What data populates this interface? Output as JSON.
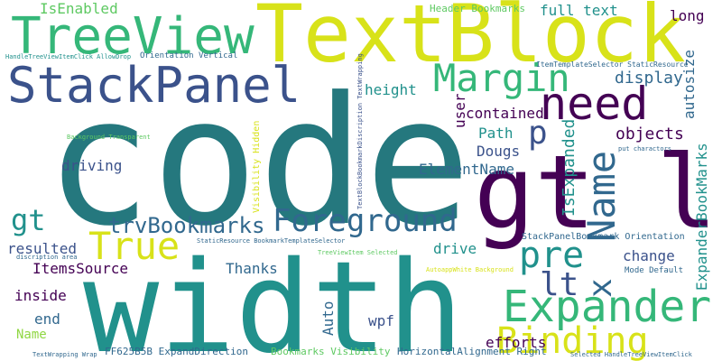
{
  "palette": {
    "background": "#ffffff",
    "dark_purple": "#440154",
    "indigo": "#3b528b",
    "blue": "#31688e",
    "teal": "#21918c",
    "teal_dark": "#25787e",
    "green": "#35b779",
    "light_green": "#5ec962",
    "lime": "#90d743",
    "yellow": "#d8e219",
    "bright_yellow": "#fde725"
  },
  "words": {
    "code": "code",
    "width": "width",
    "textblock": "TextBlock",
    "treeview": "TreeView",
    "stackpanel": "StackPanel",
    "gt_lt": "gt lt",
    "need": "need",
    "margin": "Margin",
    "foreground": "Foreground",
    "expander": "Expander",
    "binding": "Binding",
    "true": "True",
    "name_large": "Name",
    "x": "x",
    "pre": "pre",
    "lt": "lt",
    "p": "p",
    "gt": "gt",
    "trvbookmarks": "trvBookmarks",
    "isenabled": "IsEnabled",
    "header_bookmarks": "Header Bookmarks",
    "full_text": "full text",
    "long": "long",
    "display": "display",
    "autosize": "autosize",
    "objects": "objects",
    "height": "height",
    "contained": "contained",
    "user": "user",
    "isexpanded": "IsExpanded",
    "path": "Path",
    "dougs": "Dougs",
    "driving": "driving",
    "elementname": "ElementName",
    "expanderbookmarks": "ExpanderBookMarks",
    "resulted": "resulted",
    "itemssource": "ItemsSource",
    "drive": "drive",
    "change": "change",
    "thanks": "Thanks",
    "inside": "inside",
    "end": "end",
    "name_small": "Name",
    "auto": "Auto",
    "wpf": "wpf",
    "efforts": "efforts",
    "stackpanelbookmark_orientation": "StackPanelBookmark Orientation",
    "mode_default": "Mode Default",
    "ff625b5b": "FF625B5B ExpandDirection",
    "bookmarks_visibility": "Bookmarks Visibility",
    "horizontalalignment_right": "HorizontalAlignment Right",
    "handle_allowdrop": "HandleTreeViewItemClick AllowDrop",
    "orientation_vertical": "Orientation Vertical",
    "itemtemplateselector": "ItemTemplateSelector StaticResource",
    "background_transparent": "Background Transparent",
    "put_charactors": "put charactors",
    "staticresource_bts": "StaticResource BookmarkTemplateSelector",
    "discription_area": "discription area",
    "treeviewitem_selected": "TreeViewItem Selected",
    "autoappwhite_background": "AutoappWhite Background",
    "textwrapping_wrap": "TextWrapping Wrap",
    "selected_handle": "Selected HandleTreeViewItemClick",
    "visibility_hidden": "Visibility Hidden",
    "textblockbookmark_textwrapping": "TextBlockBookmarkDiscription TextWrapping"
  }
}
